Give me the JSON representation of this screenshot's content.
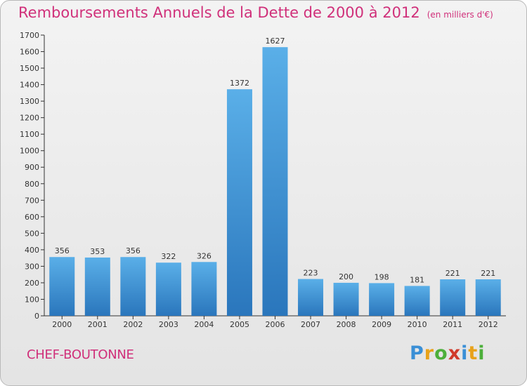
{
  "header": {
    "title": "Remboursements Annuels de la Dette de 2000 à 2012",
    "unit": "(en milliers d'€)"
  },
  "footer": {
    "commune": "CHEF-BOUTONNE",
    "logo": "Proxiti"
  },
  "colors": {
    "accent": "#d0307a",
    "bar_light": "#5aafe8",
    "bar_dark": "#2a76bc"
  },
  "chart_data": {
    "type": "bar",
    "title": "Remboursements Annuels de la Dette de 2000 à 2012",
    "categories": [
      "2000",
      "2001",
      "2002",
      "2003",
      "2004",
      "2005",
      "2006",
      "2007",
      "2008",
      "2009",
      "2010",
      "2011",
      "2012"
    ],
    "values": [
      356,
      353,
      356,
      322,
      326,
      1372,
      1627,
      223,
      200,
      198,
      181,
      221,
      221
    ],
    "ylim": [
      0,
      1700
    ],
    "yticks": [
      0,
      100,
      200,
      300,
      400,
      500,
      600,
      700,
      800,
      900,
      1000,
      1100,
      1200,
      1300,
      1400,
      1500,
      1600,
      1700
    ],
    "grid": false,
    "legend": "none"
  }
}
